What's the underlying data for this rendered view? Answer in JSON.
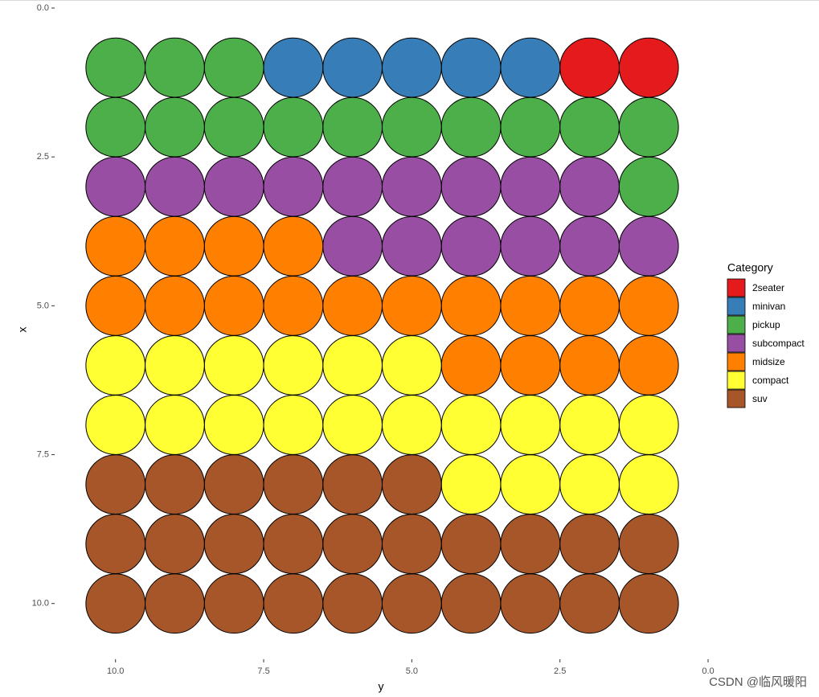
{
  "chart_data": {
    "type": "scatter",
    "xlabel": "y",
    "ylabel": "x",
    "xlim": [
      11,
      0
    ],
    "ylim": [
      0,
      10.8
    ],
    "xticks": [
      {
        "value": 10,
        "label": "10.0"
      },
      {
        "value": 7.5,
        "label": "7.5"
      },
      {
        "value": 5,
        "label": "5.0"
      },
      {
        "value": 2.5,
        "label": "2.5"
      },
      {
        "value": 0,
        "label": "0.0"
      }
    ],
    "yticks": [
      {
        "value": 0,
        "label": "0.0"
      },
      {
        "value": 2.5,
        "label": "2.5"
      },
      {
        "value": 5,
        "label": "5.0"
      },
      {
        "value": 7.5,
        "label": "7.5"
      },
      {
        "value": 10,
        "label": "10.0"
      }
    ],
    "legend_title": "Category",
    "legend_position": "right",
    "grid": false,
    "series": [
      {
        "name": "2seater",
        "color": "#E41A1C",
        "x": [
          1,
          2
        ],
        "y": [
          1,
          1
        ]
      },
      {
        "name": "minivan",
        "color": "#377EB8",
        "x": [
          3,
          4,
          5,
          6,
          7
        ],
        "y": [
          1,
          1,
          1,
          1,
          1
        ]
      },
      {
        "name": "pickup",
        "color": "#4DAF4A",
        "x": [
          8,
          9,
          10,
          1,
          2,
          3,
          4,
          5,
          6,
          7,
          8,
          9,
          10,
          1
        ],
        "y": [
          1,
          1,
          1,
          2,
          2,
          2,
          2,
          2,
          2,
          2,
          2,
          2,
          2,
          3
        ]
      },
      {
        "name": "subcompact",
        "color": "#984EA3",
        "x": [
          2,
          3,
          4,
          5,
          6,
          7,
          8,
          9,
          10,
          1,
          2,
          3,
          4,
          5,
          6
        ],
        "y": [
          3,
          3,
          3,
          3,
          3,
          3,
          3,
          3,
          3,
          4,
          4,
          4,
          4,
          4,
          4
        ]
      },
      {
        "name": "midsize",
        "color": "#FF7F00",
        "x": [
          7,
          8,
          9,
          10,
          1,
          2,
          3,
          4,
          5,
          6,
          7,
          8,
          9,
          10,
          1,
          2,
          3,
          4
        ],
        "y": [
          4,
          4,
          4,
          4,
          5,
          5,
          5,
          5,
          5,
          5,
          5,
          5,
          5,
          5,
          6,
          6,
          6,
          6
        ]
      },
      {
        "name": "compact",
        "color": "#FFFF33",
        "x": [
          5,
          6,
          7,
          8,
          9,
          10,
          1,
          2,
          3,
          4,
          5,
          6,
          7,
          8,
          9,
          10,
          1,
          2,
          3,
          4
        ],
        "y": [
          6,
          6,
          6,
          6,
          6,
          6,
          7,
          7,
          7,
          7,
          7,
          7,
          7,
          7,
          7,
          7,
          8,
          8,
          8,
          8
        ]
      },
      {
        "name": "suv",
        "color": "#A65628",
        "x": [
          5,
          6,
          7,
          8,
          9,
          10,
          1,
          2,
          3,
          4,
          5,
          6,
          7,
          8,
          9,
          10,
          1,
          2,
          3,
          4,
          5,
          6,
          7,
          8,
          9,
          10
        ],
        "y": [
          8,
          8,
          8,
          8,
          8,
          8,
          9,
          9,
          9,
          9,
          9,
          9,
          9,
          9,
          9,
          9,
          10,
          10,
          10,
          10,
          10,
          10,
          10,
          10,
          10,
          10
        ]
      }
    ]
  },
  "watermark": "CSDN @临风暖阳"
}
